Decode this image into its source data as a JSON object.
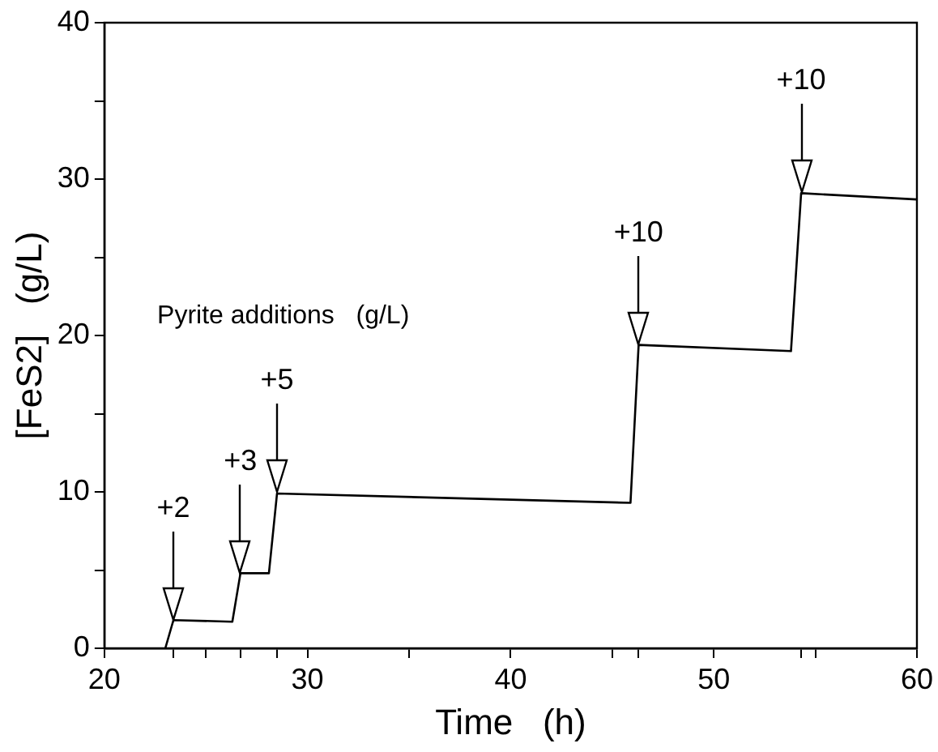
{
  "chart_data": {
    "type": "line",
    "xlabel": "Time   (h)",
    "ylabel": "[FeS2]   (g/L)",
    "x": [
      23.0,
      23.4,
      26.3,
      26.7,
      28.1,
      28.5,
      45.9,
      46.3,
      53.8,
      54.3,
      60
    ],
    "series": [
      {
        "color": "#000000",
        "values": [
          0,
          1.8,
          1.7,
          4.8,
          4.8,
          9.9,
          9.3,
          19.4,
          19.0,
          29.1,
          28.7
        ]
      }
    ],
    "xlim": [
      20,
      60
    ],
    "ylim": [
      0,
      40
    ],
    "xticks": [
      20,
      {
        "value": 23.4,
        "label": null
      },
      {
        "value": 25,
        "label": null
      },
      {
        "value": 26.7,
        "label": null
      },
      {
        "value": 28.5,
        "label": null
      },
      30,
      {
        "value": 35,
        "label": null
      },
      40,
      {
        "value": 45,
        "label": null
      },
      {
        "value": 46.3,
        "label": null
      },
      50,
      {
        "value": 54.3,
        "label": null
      },
      {
        "value": 55,
        "label": null
      },
      60
    ],
    "yticks": [
      0,
      {
        "value": 5,
        "label": null
      },
      10,
      {
        "value": 15,
        "label": null
      },
      20,
      {
        "value": 25,
        "label": null
      },
      30,
      {
        "value": 35,
        "label": null
      },
      40
    ],
    "grid": false,
    "legend": false,
    "marker": "none",
    "line_style": "solid",
    "annotations": [
      "Pyrite additions   (g/L)",
      "+2",
      "+3",
      "+5",
      "+10",
      "+10"
    ]
  }
}
